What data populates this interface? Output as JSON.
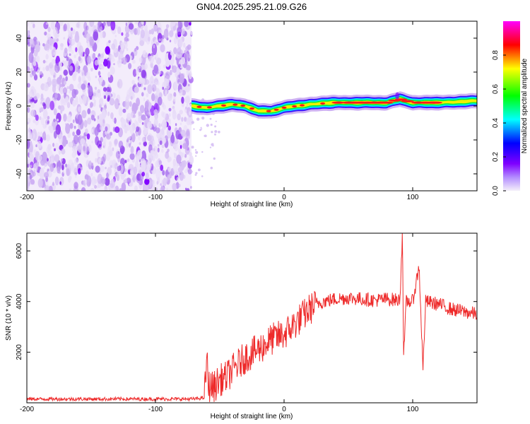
{
  "chart_data": [
    {
      "type": "heatmap",
      "title": "GN04.2025.295.21.09.G26",
      "xlabel": "Height of straight line (km)",
      "ylabel": "Frequency (Hz)",
      "xlim": [
        -200,
        150
      ],
      "ylim": [
        -50,
        50
      ],
      "xticks": [
        -200,
        -100,
        0,
        100
      ],
      "yticks": [
        -40,
        -20,
        0,
        20,
        40
      ],
      "colorbar": {
        "label": "Normalized spectral amplitude",
        "range": [
          0,
          1
        ],
        "ticks": [
          "0.0",
          "0.2",
          "0.4",
          "0.6",
          "0.8"
        ],
        "colors": [
          "#f5f0fa",
          "#7f00ff",
          "#0000ff",
          "#00ffff",
          "#00ff00",
          "#ffff00",
          "#ff0000",
          "#ff00ff"
        ]
      },
      "noise_region_x": [
        -200,
        -72
      ],
      "signal_ridge": {
        "x": [
          -72,
          -60,
          -50,
          -40,
          -30,
          -20,
          -10,
          0,
          10,
          20,
          40,
          60,
          80,
          90,
          100,
          120,
          150
        ],
        "frequency": [
          0,
          -1,
          0,
          1,
          0,
          -3,
          -3,
          -1,
          0,
          1,
          2,
          2,
          2,
          4,
          2,
          2,
          3
        ]
      }
    },
    {
      "type": "line",
      "title": "",
      "xlabel": "Height of straight line (km)",
      "ylabel": "SNR (10 * v/v)",
      "xlim": [
        -200,
        150
      ],
      "ylim": [
        0,
        6700
      ],
      "xticks": [
        -200,
        -100,
        0,
        100
      ],
      "yticks": [
        2000,
        4000,
        6000
      ],
      "color": "#ee2a2a",
      "series": [
        {
          "name": "SNR",
          "x": [
            -200,
            -150,
            -100,
            -70,
            -62,
            -60,
            -59,
            -55,
            -50,
            -45,
            -40,
            -30,
            -20,
            -10,
            0,
            10,
            20,
            25,
            30,
            40,
            50,
            60,
            70,
            80,
            90,
            92,
            93,
            95,
            100,
            105,
            108,
            110,
            120,
            130,
            140,
            150
          ],
          "y": [
            150,
            150,
            150,
            150,
            200,
            1800,
            700,
            600,
            900,
            1000,
            1300,
            1800,
            2100,
            2500,
            2700,
            3200,
            3700,
            3900,
            4000,
            4100,
            4150,
            4100,
            4050,
            4100,
            4050,
            6700,
            1800,
            4000,
            4000,
            5400,
            1300,
            4000,
            3900,
            3700,
            3600,
            3500
          ]
        }
      ]
    }
  ]
}
